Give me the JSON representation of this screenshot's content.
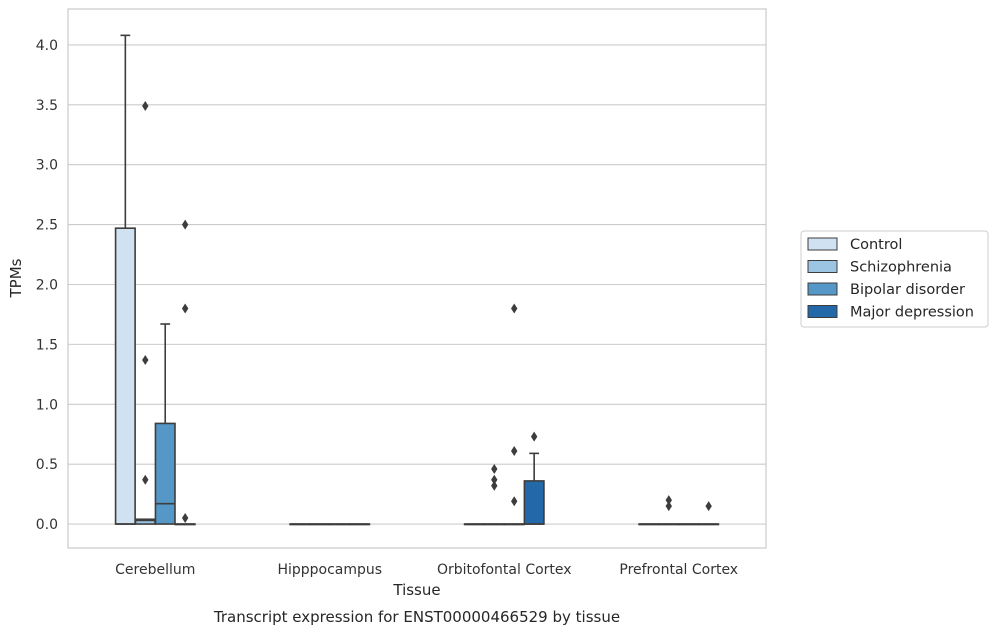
{
  "chart_data": {
    "type": "boxplot",
    "xlabel": "Tissue",
    "ylabel": "TPMs",
    "caption": "Transcript expression for ENST00000466529 by tissue",
    "ylim": [
      -0.2,
      4.3
    ],
    "yticks": [
      0.0,
      0.5,
      1.0,
      1.5,
      2.0,
      2.5,
      3.0,
      3.5,
      4.0
    ],
    "ytick_labels": [
      "0.0",
      "0.5",
      "1.0",
      "1.5",
      "2.0",
      "2.5",
      "3.0",
      "3.5",
      "4.0"
    ],
    "grid": "horizontal",
    "legend_position": "right",
    "categories": [
      "Cerebellum",
      "Hipppocampus",
      "Orbitofontal Cortex",
      "Prefrontal Cortex"
    ],
    "series": [
      {
        "name": "Control",
        "color": "#d0e1f1",
        "boxes": [
          {
            "whislo": 0.0,
            "q1": 0.0,
            "med": 0.0,
            "q3": 2.47,
            "whishi": 4.08,
            "fliers": []
          },
          {
            "whislo": 0.0,
            "q1": 0.0,
            "med": 0.0,
            "q3": 0.0,
            "whishi": 0.0,
            "fliers": []
          },
          {
            "whislo": 0.0,
            "q1": 0.0,
            "med": 0.0,
            "q3": 0.0,
            "whishi": 0.0,
            "fliers": []
          },
          {
            "whislo": 0.0,
            "q1": 0.0,
            "med": 0.0,
            "q3": 0.0,
            "whishi": 0.0,
            "fliers": []
          }
        ]
      },
      {
        "name": "Schizophrenia",
        "color": "#9cc4e3",
        "boxes": [
          {
            "whislo": 0.0,
            "q1": 0.0,
            "med": 0.03,
            "q3": 0.04,
            "whishi": 0.04,
            "fliers": [
              3.49,
              1.37,
              0.37
            ]
          },
          {
            "whislo": 0.0,
            "q1": 0.0,
            "med": 0.0,
            "q3": 0.0,
            "whishi": 0.0,
            "fliers": []
          },
          {
            "whislo": 0.0,
            "q1": 0.0,
            "med": 0.0,
            "q3": 0.0,
            "whishi": 0.0,
            "fliers": [
              0.46,
              0.37,
              0.32
            ]
          },
          {
            "whislo": 0.0,
            "q1": 0.0,
            "med": 0.0,
            "q3": 0.0,
            "whishi": 0.0,
            "fliers": [
              0.2,
              0.15
            ]
          }
        ]
      },
      {
        "name": "Bipolar disorder",
        "color": "#5597c7",
        "boxes": [
          {
            "whislo": 0.0,
            "q1": 0.0,
            "med": 0.17,
            "q3": 0.84,
            "whishi": 1.67,
            "fliers": []
          },
          {
            "whislo": 0.0,
            "q1": 0.0,
            "med": 0.0,
            "q3": 0.0,
            "whishi": 0.0,
            "fliers": []
          },
          {
            "whislo": 0.0,
            "q1": 0.0,
            "med": 0.0,
            "q3": 0.0,
            "whishi": 0.0,
            "fliers": [
              1.8,
              0.61,
              0.19
            ]
          },
          {
            "whislo": 0.0,
            "q1": 0.0,
            "med": 0.0,
            "q3": 0.0,
            "whishi": 0.0,
            "fliers": []
          }
        ]
      },
      {
        "name": "Major depression",
        "color": "#2369a9",
        "boxes": [
          {
            "whislo": 0.0,
            "q1": 0.0,
            "med": 0.0,
            "q3": 0.0,
            "whishi": 0.0,
            "fliers": [
              2.5,
              1.8,
              0.05
            ]
          },
          {
            "whislo": 0.0,
            "q1": 0.0,
            "med": 0.0,
            "q3": 0.0,
            "whishi": 0.0,
            "fliers": []
          },
          {
            "whislo": 0.0,
            "q1": 0.0,
            "med": 0.0,
            "q3": 0.36,
            "whishi": 0.59,
            "fliers": [
              0.73
            ]
          },
          {
            "whislo": 0.0,
            "q1": 0.0,
            "med": 0.0,
            "q3": 0.0,
            "whishi": 0.0,
            "fliers": [
              0.15
            ]
          }
        ]
      }
    ]
  }
}
